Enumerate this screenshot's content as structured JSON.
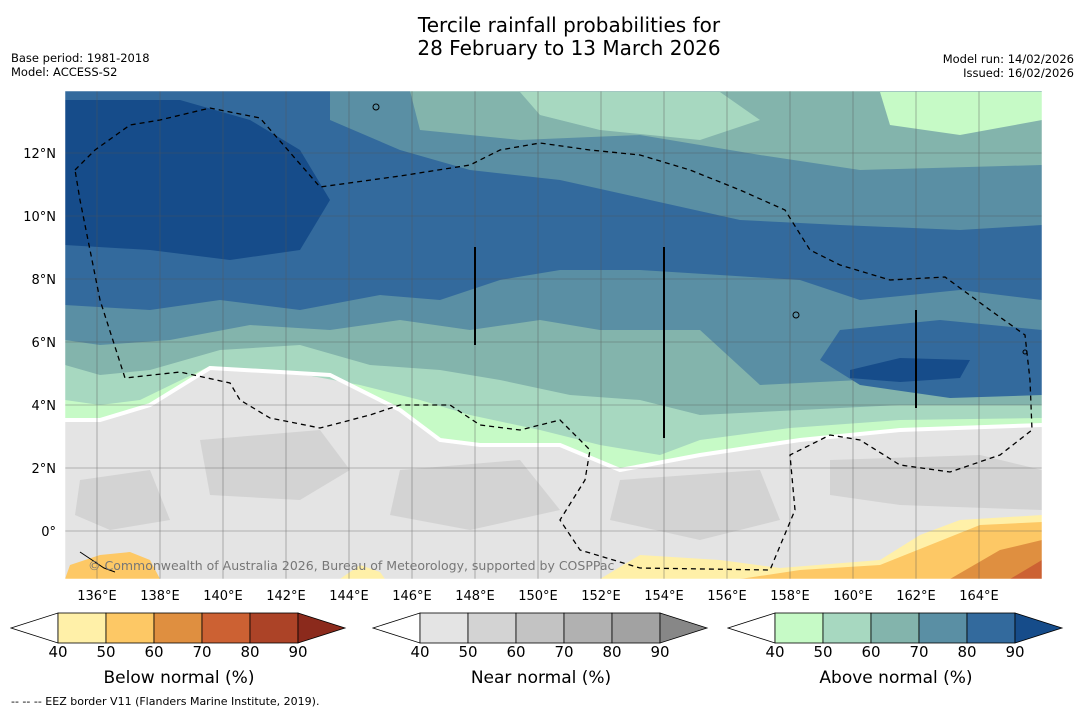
{
  "title": {
    "line1": "Tercile rainfall probabilities for",
    "line2": "28 February to 13 March 2026"
  },
  "meta": {
    "base_period": "Base period: 1981-2018",
    "model": "Model: ACCESS-S2",
    "model_run": "Model run: 14/02/2026",
    "issued": "Issued: 16/02/2026"
  },
  "map": {
    "lat_labels": [
      "12°N",
      "10°N",
      "8°N",
      "6°N",
      "4°N",
      "2°N",
      "0°"
    ],
    "lon_labels": [
      "136°E",
      "138°E",
      "140°E",
      "142°E",
      "144°E",
      "146°E",
      "148°E",
      "150°E",
      "152°E",
      "154°E",
      "156°E",
      "158°E",
      "160°E",
      "162°E",
      "164°E"
    ],
    "copyright": "© Commonwealth of Australia 2026, Bureau of Meteorology, supported by COSPPac"
  },
  "colorbars": [
    {
      "id": "below",
      "label": "Below normal (%)",
      "ticks": [
        "40",
        "50",
        "60",
        "70",
        "80",
        "90"
      ],
      "colors": [
        "#fff0a8",
        "#fdc865",
        "#df8f40",
        "#cc6133",
        "#ac4327",
        "#8b2a1c"
      ]
    },
    {
      "id": "near",
      "label": "Near normal (%)",
      "ticks": [
        "40",
        "50",
        "60",
        "70",
        "80",
        "90"
      ],
      "colors": [
        "#e4e4e4",
        "#d3d3d3",
        "#c3c3c3",
        "#b1b1b1",
        "#a2a2a2",
        "#878787"
      ]
    },
    {
      "id": "above",
      "label": "Above normal (%)",
      "ticks": [
        "40",
        "50",
        "60",
        "70",
        "80",
        "90"
      ],
      "colors": [
        "#c6fac6",
        "#a7d8c0",
        "#83b4ac",
        "#5a8fa4",
        "#336a9d",
        "#164c8a"
      ]
    }
  ],
  "footer": "-- -- -- EEZ border V11 (Flanders Marine Institute, 2019).",
  "colors": {
    "background": "#ffffff",
    "grid": "#555555"
  }
}
